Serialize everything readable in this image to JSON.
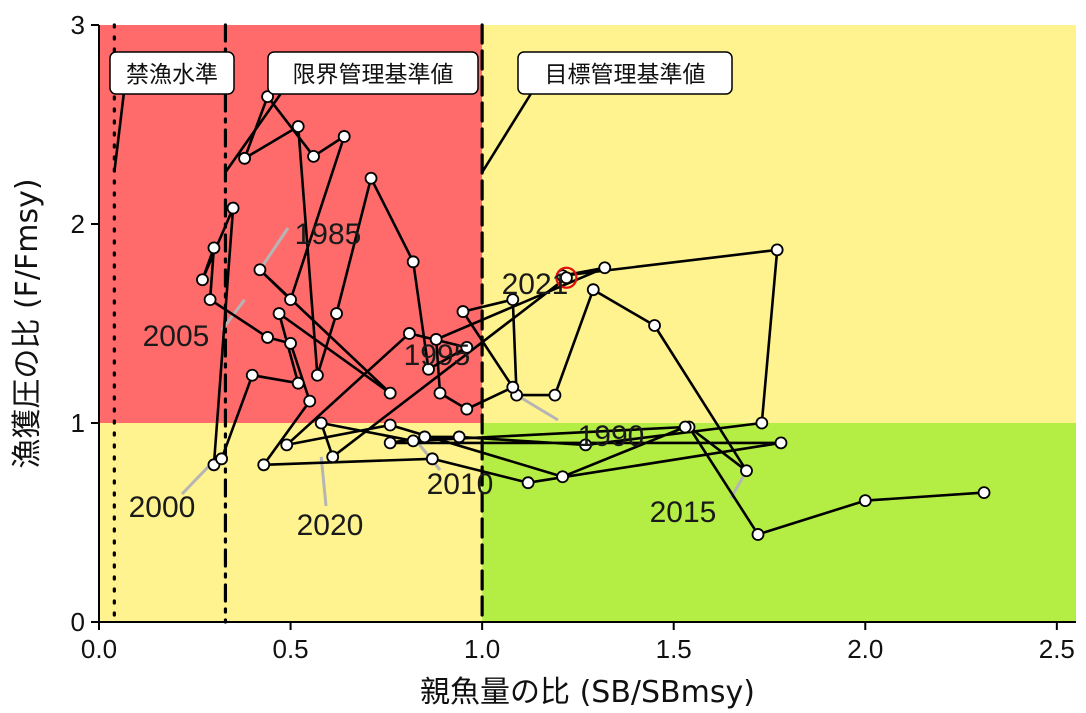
{
  "chart_data": {
    "type": "scatter",
    "title": "",
    "xlabel": "親魚量の比 (SB/SBmsy)",
    "ylabel": "漁獲圧の比 (F/Fmsy)",
    "xlim": [
      0,
      2.55
    ],
    "ylim": [
      0,
      3
    ],
    "xticks": [
      "0.0",
      "0.5",
      "1.0",
      "1.5",
      "2.0",
      "2.5"
    ],
    "xtick_values": [
      0,
      0.5,
      1.0,
      1.5,
      2.0,
      2.5
    ],
    "yticks": [
      "0",
      "1",
      "2",
      "3"
    ],
    "ytick_values": [
      0,
      1,
      2,
      3
    ],
    "regions": [
      {
        "name": "red",
        "color": "#FF6B6B",
        "x": [
          0,
          1.0
        ],
        "y": [
          1,
          3
        ]
      },
      {
        "name": "yellow",
        "color": "#FFF38F",
        "x": [
          0,
          1.0
        ],
        "y": [
          0,
          1
        ]
      },
      {
        "name": "yellow",
        "color": "#FFF38F",
        "x": [
          1.0,
          2.55
        ],
        "y": [
          1,
          3
        ]
      },
      {
        "name": "green",
        "color": "#B4EE44",
        "x": [
          1.0,
          2.55
        ],
        "y": [
          0,
          1
        ]
      }
    ],
    "reference_lines": [
      {
        "label": "禁漁水準",
        "x": 0.04,
        "style": "dotted"
      },
      {
        "label": "限界管理基準値",
        "x": 0.33,
        "style": "dotdash"
      },
      {
        "label": "目標管理基準値",
        "x": 1.0,
        "style": "dashed"
      }
    ],
    "series": [
      {
        "x": [
          2.31,
          2.0,
          1.72,
          1.54,
          1.69,
          1.45,
          1.29,
          1.19,
          1.09,
          1.08,
          0.95,
          1.08,
          0.96,
          0.89,
          0.88,
          1.32,
          1.21,
          1.77,
          1.73,
          1.27,
          0.94,
          0.85,
          0.76,
          1.78,
          1.12,
          0.87,
          0.43,
          0.55,
          0.5,
          0.44,
          0.29,
          0.3,
          0.27,
          0.35,
          0.3,
          0.32,
          0.4,
          0.52,
          0.47,
          0.76,
          0.42,
          0.5,
          0.64,
          0.56,
          0.44,
          0.38,
          0.52,
          0.57,
          0.62,
          0.71,
          0.82,
          0.86,
          0.96,
          0.81,
          0.49,
          0.76,
          1.21,
          1.53,
          0.82,
          0.58,
          0.61,
          1.22
        ],
        "y": [
          0.65,
          0.61,
          0.44,
          0.98,
          0.76,
          1.49,
          1.67,
          1.14,
          1.14,
          1.62,
          1.56,
          1.18,
          1.07,
          1.15,
          1.42,
          1.78,
          1.74,
          1.87,
          1.0,
          0.89,
          0.93,
          0.93,
          0.9,
          0.9,
          0.7,
          0.82,
          0.79,
          1.11,
          1.4,
          1.43,
          1.62,
          1.88,
          1.72,
          2.08,
          0.79,
          0.82,
          1.24,
          1.2,
          1.55,
          1.15,
          1.77,
          1.62,
          2.44,
          2.34,
          2.64,
          2.33,
          2.49,
          1.24,
          1.55,
          2.23,
          1.81,
          1.27,
          1.38,
          1.45,
          0.89,
          0.99,
          0.73,
          0.98,
          0.91,
          1.0,
          0.83,
          1.73
        ]
      }
    ],
    "annotations": [
      {
        "text": "1985",
        "x": 0.42,
        "y": 1.77
      },
      {
        "text": "1990",
        "x": 1.09,
        "y": 1.14
      },
      {
        "text": "1995",
        "x": 0.88,
        "y": 1.42
      },
      {
        "text": "2000",
        "x": 0.29,
        "y": 0.79
      },
      {
        "text": "2005",
        "x": 0.38,
        "y": 1.62
      },
      {
        "text": "2010",
        "x": 0.82,
        "y": 0.93
      },
      {
        "text": "2015",
        "x": 1.69,
        "y": 0.76
      },
      {
        "text": "2020",
        "x": 0.58,
        "y": 0.83
      },
      {
        "text": "2021",
        "x": 1.22,
        "y": 1.73
      }
    ],
    "highlight": {
      "x": 1.22,
      "y": 1.73,
      "color": "#E01010"
    },
    "grid": false,
    "legend": "none"
  }
}
